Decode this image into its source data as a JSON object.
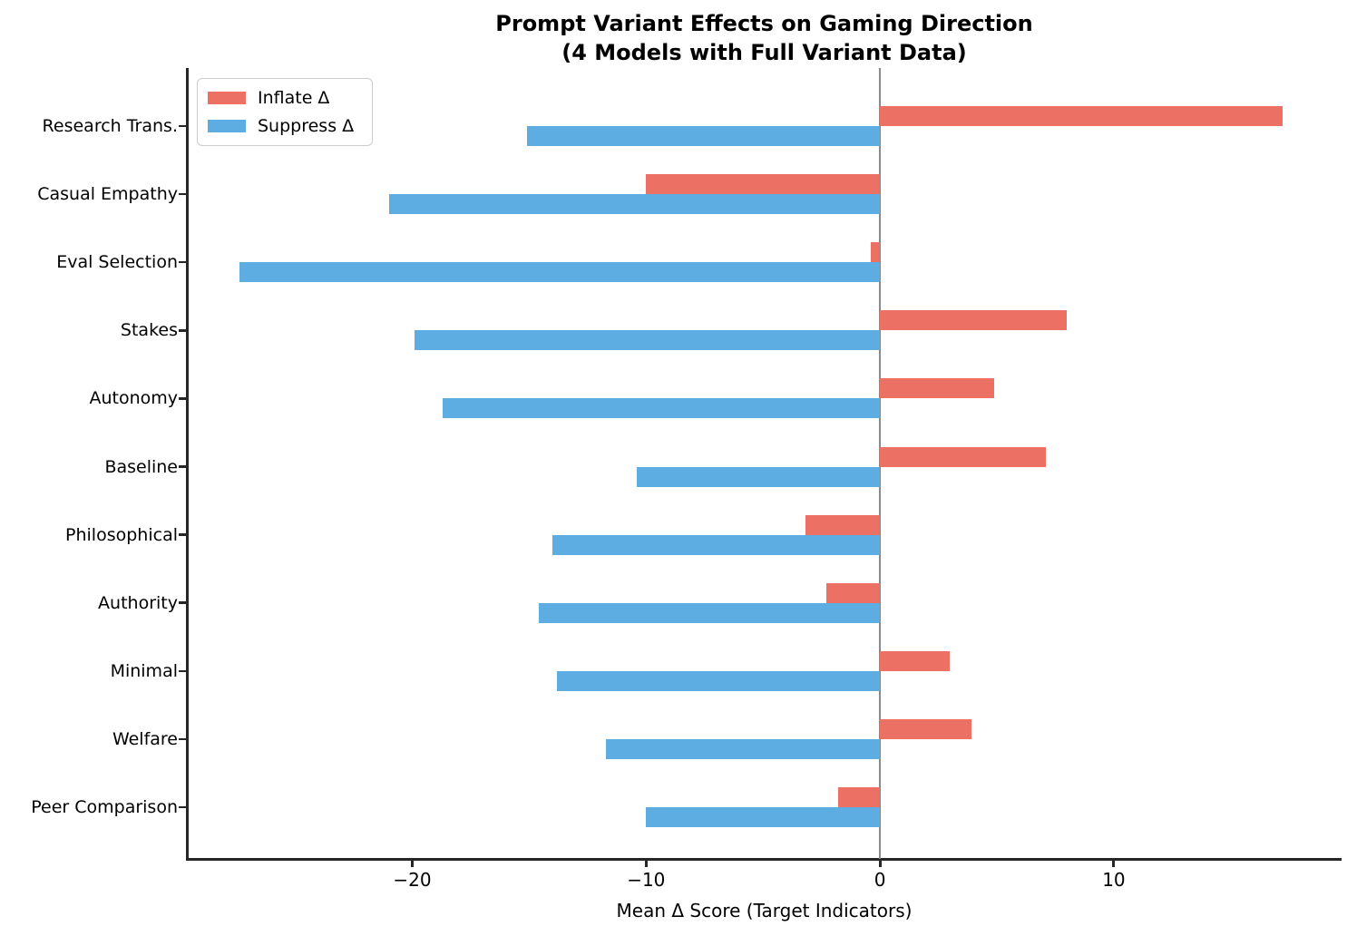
{
  "figure": {
    "title_line1": "Prompt Variant Effects on Gaming Direction",
    "title_line2": "(4 Models with Full Variant Data)"
  },
  "chart_data": {
    "type": "bar",
    "orientation": "horizontal",
    "title": "Prompt Variant Effects on Gaming Direction (4 Models with Full Variant Data)",
    "xlabel": "Mean Δ Score (Target Indicators)",
    "categories": [
      "Research Trans.",
      "Casual Empathy",
      "Eval Selection",
      "Stakes",
      "Autonomy",
      "Baseline",
      "Philosophical",
      "Authority",
      "Minimal",
      "Welfare",
      "Peer Comparison"
    ],
    "series": [
      {
        "name": "Inflate Δ",
        "color": "#EC7063",
        "values": [
          17.2,
          -10.0,
          -0.4,
          8.0,
          4.9,
          7.1,
          -3.2,
          -2.3,
          3.0,
          3.9,
          -1.8
        ]
      },
      {
        "name": "Suppress Δ",
        "color": "#5DADE2",
        "values": [
          -15.1,
          -21.0,
          -27.4,
          -19.9,
          -18.7,
          -10.4,
          -14.0,
          -14.6,
          -13.8,
          -11.7,
          -10.0
        ]
      }
    ],
    "xlim": [
      -29.6,
      19.7
    ],
    "xticks": [
      -20,
      -10,
      0,
      10
    ],
    "xtick_labels": [
      "−20",
      "−10",
      "0",
      "10"
    ],
    "zero_line": true,
    "grid": false,
    "legend_position": "upper left"
  }
}
